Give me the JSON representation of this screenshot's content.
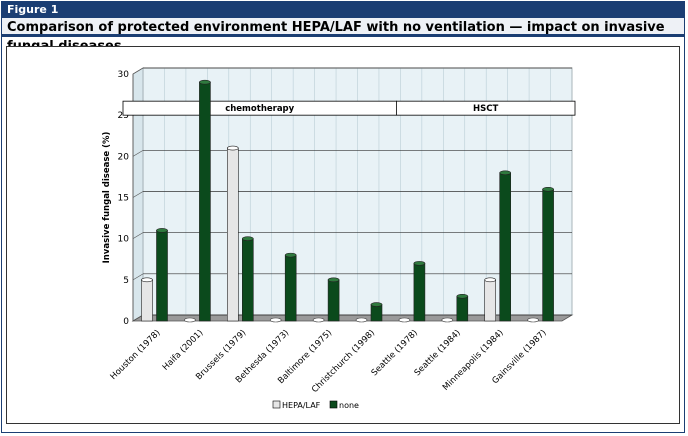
{
  "figure": {
    "label": "Figure 1",
    "caption": "Comparison of protected environment HEPA/LAF with no ventilation — impact on invasive fungal diseases"
  },
  "chart_data": {
    "type": "bar",
    "title": "",
    "xlabel": "",
    "ylabel": "Invasive fungal disease (%)",
    "ylim": [
      0,
      30
    ],
    "yticks": [
      0,
      5,
      10,
      15,
      20,
      25,
      30
    ],
    "grid": true,
    "legend_position": "bottom",
    "categories": [
      "Houston (1978)",
      "Haifa (2001)",
      "Brussels (1979)",
      "Bethesda (1973)",
      "Baltimore (1975)",
      "Christchurch (1998)",
      "Seattle (1978)",
      "Seattle (1984)",
      "Minneapolis (1984)",
      "Gainsville (1987)"
    ],
    "series": [
      {
        "name": "HEPA/LAF",
        "color": "#e6e6e6",
        "values": [
          5,
          0,
          21,
          0,
          0,
          0,
          0,
          0,
          5,
          0
        ]
      },
      {
        "name": "none",
        "color": "#0b4a1c",
        "values": [
          11,
          29,
          10,
          8,
          5,
          2,
          7,
          3,
          18,
          16
        ]
      }
    ],
    "groups": [
      {
        "label": "chemotherapy",
        "from": 0,
        "to": 5
      },
      {
        "label": "HSCT",
        "from": 6,
        "to": 9
      }
    ]
  }
}
